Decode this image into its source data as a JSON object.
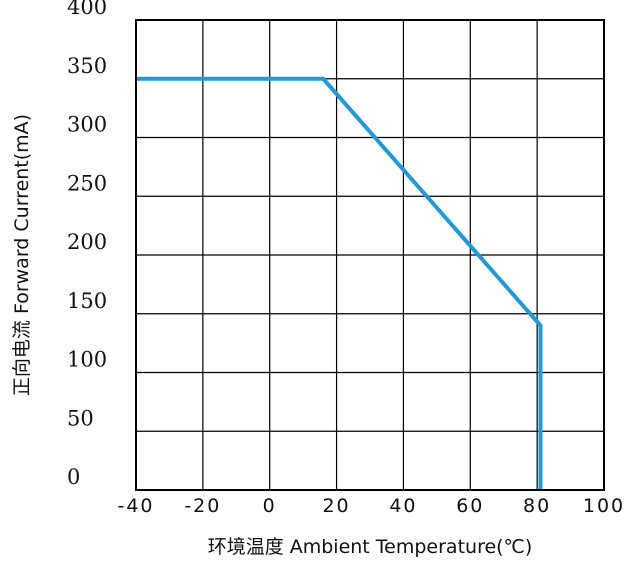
{
  "chart_data": {
    "type": "line",
    "xlabel": "环境温度  Ambient Temperature(℃)",
    "ylabel": "正向电流 Forward Current(mA)",
    "xlim": [
      -40,
      100
    ],
    "ylim": [
      0,
      400
    ],
    "x_ticks": [
      "-40",
      "-20",
      "0",
      "20",
      "40",
      "60",
      "80",
      "100"
    ],
    "y_ticks": [
      "0",
      "50",
      "100",
      "150",
      "200",
      "250",
      "300",
      "350",
      "400"
    ],
    "grid": true,
    "line_color": "#1f9ad8",
    "series": [
      {
        "x": [
          -40,
          16,
          81,
          81
        ],
        "y": [
          350,
          350,
          140,
          0
        ]
      }
    ]
  }
}
